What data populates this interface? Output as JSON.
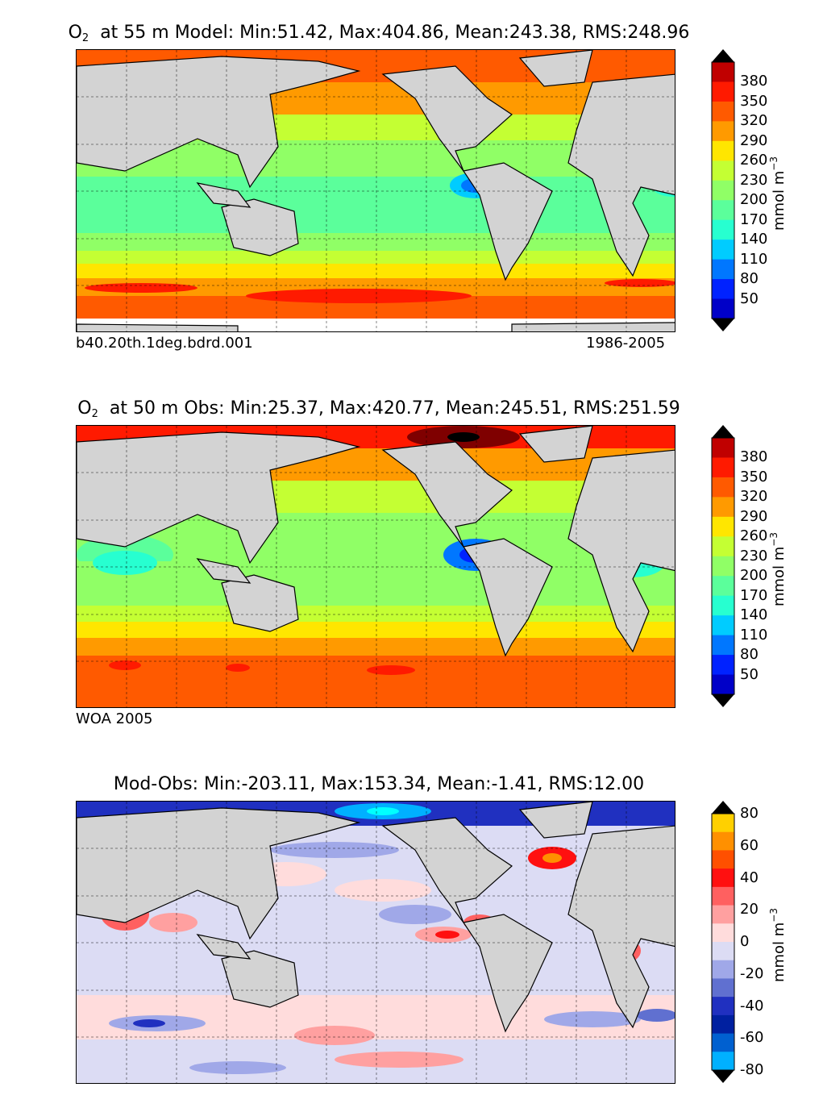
{
  "panels": [
    {
      "title_prefix": "O",
      "title_sub": "2",
      "title_rest": "  at 55 m Model: Min:51.42, Max:404.86, Mean:243.38, RMS:248.96",
      "note_left": "b40.20th.1deg.bdrd.001",
      "note_right": "1986-2005",
      "units": "mmol m",
      "units_sup": "−3"
    },
    {
      "title_prefix": "O",
      "title_sub": "2",
      "title_rest": "  at 50 m Obs: Min:25.37, Max:420.77, Mean:245.51, RMS:251.59",
      "note_left": "WOA 2005",
      "note_right": "",
      "units": "mmol m",
      "units_sup": "−3"
    },
    {
      "title_prefix": "",
      "title_sub": "",
      "title_rest": "Mod-Obs: Min:-203.11, Max:153.34, Mean:-1.41, RMS:12.00",
      "note_left": "",
      "note_right": "",
      "units": "mmol m",
      "units_sup": "−3"
    }
  ],
  "colormaps": {
    "o2": [
      "#00007f",
      "#0000c8",
      "#0022ff",
      "#0077ff",
      "#00ccff",
      "#27ffd0",
      "#5bff9b",
      "#90ff66",
      "#c4ff33",
      "#ffe600",
      "#ff9a00",
      "#ff5a00",
      "#ff1a00",
      "#c00000",
      "#7f0000"
    ],
    "diff": [
      "#00ffff",
      "#00b0ff",
      "#0060d0",
      "#0020a0",
      "#2030c0",
      "#6070d0",
      "#a0a8e8",
      "#dcdcf4",
      "#ffdcdc",
      "#ffa0a0",
      "#ff6060",
      "#ff1010",
      "#ff5000",
      "#ff9000",
      "#ffd000",
      "#ffff00"
    ],
    "land": "#d3d3d3"
  },
  "chart_data": [
    {
      "type": "heatmap",
      "title": "O2 at 55 m Model: Min:51.42, Max:404.86, Mean:243.38, RMS:248.96",
      "stats": {
        "min": 51.42,
        "max": 404.86,
        "mean": 243.38,
        "rms": 248.96
      },
      "depth_m": 55,
      "colorbar_ticks": [
        "380",
        "350",
        "320",
        "290",
        "260",
        "230",
        "200",
        "170",
        "140",
        "110",
        "80",
        "50"
      ],
      "colorbar_label": "mmol m−3",
      "colorbar_extend": "both",
      "grid": true
    },
    {
      "type": "heatmap",
      "title": "O2 at 50 m Obs: Min:25.37, Max:420.77, Mean:245.51, RMS:251.59",
      "stats": {
        "min": 25.37,
        "max": 420.77,
        "mean": 245.51,
        "rms": 251.59
      },
      "depth_m": 50,
      "colorbar_ticks": [
        "380",
        "350",
        "320",
        "290",
        "260",
        "230",
        "200",
        "170",
        "140",
        "110",
        "80",
        "50"
      ],
      "colorbar_label": "mmol m−3",
      "colorbar_extend": "both",
      "grid": true
    },
    {
      "type": "heatmap",
      "title": "Mod-Obs: Min:-203.11, Max:153.34, Mean:-1.41, RMS:12.00",
      "stats": {
        "min": -203.11,
        "max": 153.34,
        "mean": -1.41,
        "rms": 12.0
      },
      "colorbar_ticks": [
        "80",
        "60",
        "40",
        "20",
        "0",
        "-20",
        "-40",
        "-60",
        "-80"
      ],
      "colorbar_label": "mmol m−3",
      "colorbar_extend": "both",
      "grid": true
    }
  ]
}
